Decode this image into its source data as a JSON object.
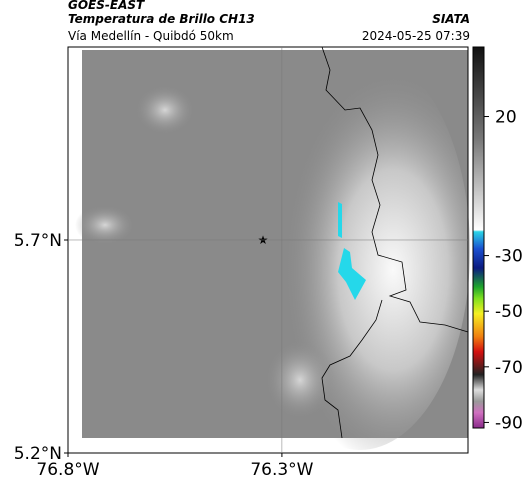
{
  "header": {
    "source": "GOES-EAST",
    "product": "Temperatura de Brillo CH13",
    "region": "Vía Medellín - Quibdó 50km",
    "brand": "SIATA",
    "timestamp": "2024-05-25 07:39"
  },
  "map": {
    "latlim": [
      5.2,
      6.153
    ],
    "lonlim": [
      -76.8,
      -75.865
    ],
    "lat_ticks": [
      {
        "value": 5.7,
        "label": "5.7°N"
      },
      {
        "value": 5.2,
        "label": "5.2°N"
      }
    ],
    "lon_ticks": [
      {
        "value": -76.8,
        "label": "76.8°W"
      },
      {
        "value": -76.3,
        "label": "76.3°W"
      }
    ]
  },
  "colorbar": {
    "lim": [
      45,
      -92
    ],
    "ticks": [
      20,
      -30,
      -50,
      -70,
      -90
    ]
  }
}
